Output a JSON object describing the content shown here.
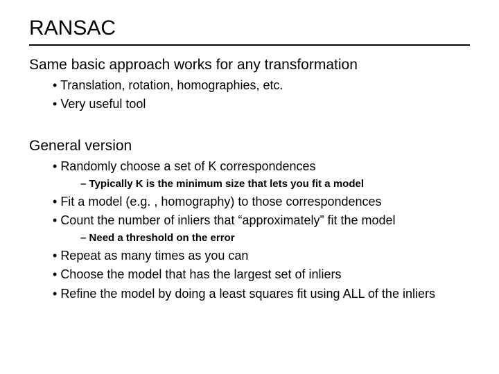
{
  "colors": {
    "background": "#ffffff",
    "text": "#000000",
    "rule": "#000000"
  },
  "typography": {
    "title_fontsize": 30,
    "section_fontsize": 21,
    "level1_fontsize": 18,
    "level2_fontsize": 15,
    "font_family": "Arial"
  },
  "title": "RANSAC",
  "section1": {
    "heading": "Same basic approach works for any transformation",
    "bullets": [
      "Translation, rotation, homographies, etc.",
      "Very useful tool"
    ]
  },
  "section2": {
    "heading": "General version",
    "items": [
      {
        "type": "bullet",
        "text": "Randomly choose a set of K correspondences"
      },
      {
        "type": "dash",
        "text": "Typically K is the minimum size that lets you fit a model"
      },
      {
        "type": "bullet",
        "text": "Fit a model (e.g. , homography) to those correspondences"
      },
      {
        "type": "bullet",
        "text": "Count the number of inliers that “approximately” fit the model"
      },
      {
        "type": "dash",
        "text": "Need a threshold on the error"
      },
      {
        "type": "bullet",
        "text": "Repeat as many times as you can"
      },
      {
        "type": "bullet",
        "text": "Choose the model that has the largest set of inliers"
      },
      {
        "type": "bullet",
        "text": "Refine the model by doing a least squares fit using ALL of the inliers"
      }
    ]
  }
}
